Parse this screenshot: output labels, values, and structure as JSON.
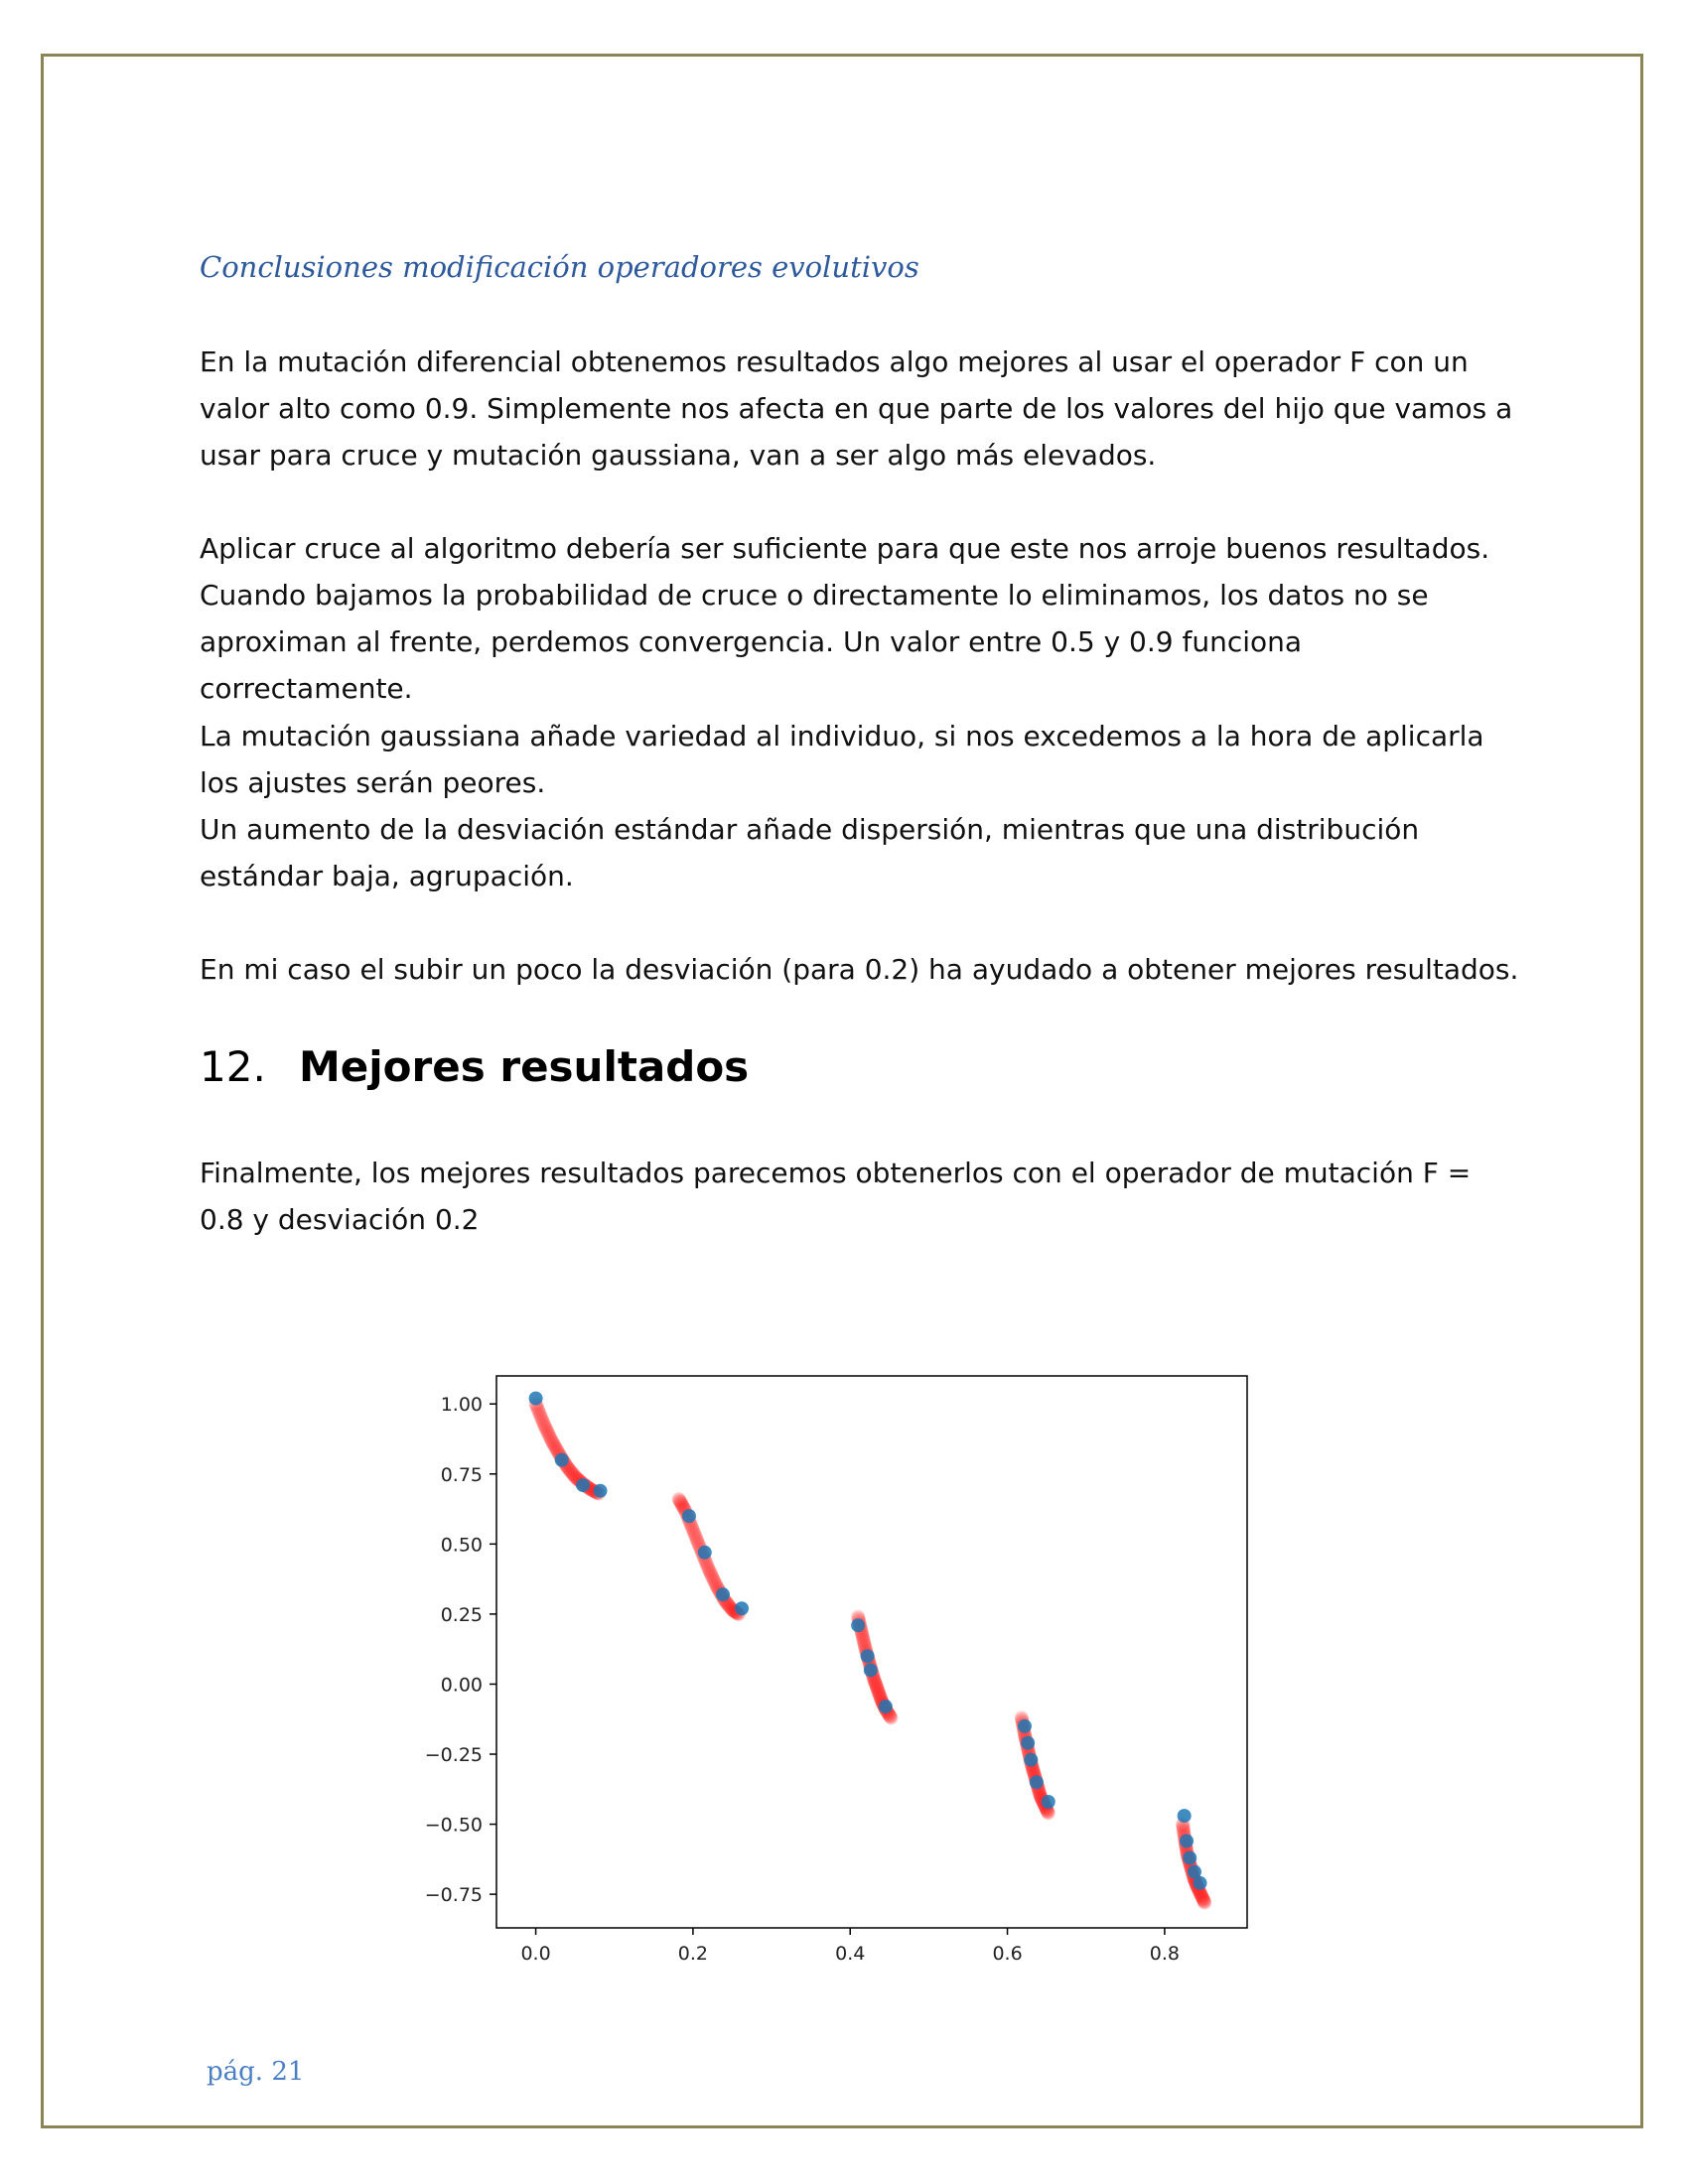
{
  "subsection": {
    "heading": "Conclusiones modificación operadores evolutivos"
  },
  "paragraphs": {
    "p1": "En la mutación diferencial obtenemos resultados algo mejores al usar el operador F con un valor alto como 0.9. Simplemente nos afecta en que parte de los valores del hijo que vamos a usar para cruce y mutación gaussiana, van a ser algo más elevados.",
    "p2": "Aplicar cruce al algoritmo debería ser suficiente para que este nos arroje buenos resultados. Cuando bajamos la probabilidad de cruce o directamente lo eliminamos, los datos no se aproximan al frente, perdemos convergencia. Un valor entre 0.5 y 0.9 funciona correctamente.",
    "p3a": "La mutación gaussiana añade variedad al individuo, si nos excedemos a la hora de aplicarla los ajustes serán peores.",
    "p3b": "Un aumento de la desviación estándar añade dispersión, mientras que una distribución estándar baja, agrupación.",
    "p4": "En mi caso el subir un poco la desviación (para 0.2) ha ayudado a obtener mejores resultados."
  },
  "section": {
    "number": "12.",
    "title": "Mejores resultados"
  },
  "section_text": "Finalmente, los mejores resultados parecemos obtenerlos con el operador de mutación F = 0.8 y desviación 0.2",
  "page_number": "pág. 21",
  "chart_data": {
    "type": "scatter",
    "title": "",
    "xlabel": "",
    "ylabel": "",
    "xlim": [
      -0.05,
      0.905
    ],
    "ylim": [
      -0.87,
      1.1
    ],
    "x_ticks": [
      0.0,
      0.2,
      0.4,
      0.6,
      0.8
    ],
    "x_tick_labels": [
      "0.0",
      "0.2",
      "0.4",
      "0.6",
      "0.8"
    ],
    "y_ticks": [
      1.0,
      0.75,
      0.5,
      0.25,
      0.0,
      -0.25,
      -0.5,
      -0.75
    ],
    "y_tick_labels": [
      "1.00",
      "0.75",
      "0.50",
      "0.25",
      "0.00",
      "−0.25",
      "−0.50",
      "−0.75"
    ],
    "grid": false,
    "series": [
      {
        "role": "pareto-front",
        "color": "#ff2020",
        "segments": [
          [
            [
              0.0,
              1.0
            ],
            [
              0.01,
              0.93
            ],
            [
              0.02,
              0.87
            ],
            [
              0.03,
              0.82
            ],
            [
              0.04,
              0.775
            ],
            [
              0.05,
              0.74
            ],
            [
              0.06,
              0.715
            ],
            [
              0.07,
              0.695
            ],
            [
              0.08,
              0.68
            ]
          ],
          [
            [
              0.182,
              0.66
            ],
            [
              0.19,
              0.62
            ],
            [
              0.2,
              0.55
            ],
            [
              0.21,
              0.48
            ],
            [
              0.22,
              0.41
            ],
            [
              0.23,
              0.35
            ],
            [
              0.24,
              0.3
            ],
            [
              0.25,
              0.265
            ],
            [
              0.258,
              0.25
            ]
          ],
          [
            [
              0.41,
              0.24
            ],
            [
              0.415,
              0.18
            ],
            [
              0.42,
              0.12
            ],
            [
              0.425,
              0.07
            ],
            [
              0.43,
              0.02
            ],
            [
              0.435,
              -0.02
            ],
            [
              0.44,
              -0.06
            ],
            [
              0.445,
              -0.09
            ],
            [
              0.452,
              -0.12
            ]
          ],
          [
            [
              0.618,
              -0.12
            ],
            [
              0.622,
              -0.18
            ],
            [
              0.626,
              -0.23
            ],
            [
              0.63,
              -0.28
            ],
            [
              0.634,
              -0.32
            ],
            [
              0.638,
              -0.36
            ],
            [
              0.642,
              -0.4
            ],
            [
              0.647,
              -0.43
            ],
            [
              0.652,
              -0.46
            ]
          ],
          [
            [
              0.823,
              -0.5
            ],
            [
              0.826,
              -0.56
            ],
            [
              0.829,
              -0.61
            ],
            [
              0.833,
              -0.65
            ],
            [
              0.837,
              -0.69
            ],
            [
              0.841,
              -0.72
            ],
            [
              0.846,
              -0.75
            ],
            [
              0.851,
              -0.78
            ]
          ]
        ]
      },
      {
        "role": "solutions",
        "color": "#1f77b4",
        "points": [
          [
            0.0,
            1.02
          ],
          [
            0.033,
            0.8
          ],
          [
            0.06,
            0.71
          ],
          [
            0.082,
            0.69
          ],
          [
            0.195,
            0.6
          ],
          [
            0.215,
            0.47
          ],
          [
            0.238,
            0.32
          ],
          [
            0.262,
            0.27
          ],
          [
            0.41,
            0.21
          ],
          [
            0.422,
            0.1
          ],
          [
            0.426,
            0.05
          ],
          [
            0.445,
            -0.08
          ],
          [
            0.622,
            -0.15
          ],
          [
            0.626,
            -0.21
          ],
          [
            0.63,
            -0.27
          ],
          [
            0.637,
            -0.35
          ],
          [
            0.652,
            -0.42
          ],
          [
            0.825,
            -0.47
          ],
          [
            0.828,
            -0.56
          ],
          [
            0.832,
            -0.62
          ],
          [
            0.838,
            -0.67
          ],
          [
            0.845,
            -0.71
          ]
        ]
      }
    ]
  }
}
